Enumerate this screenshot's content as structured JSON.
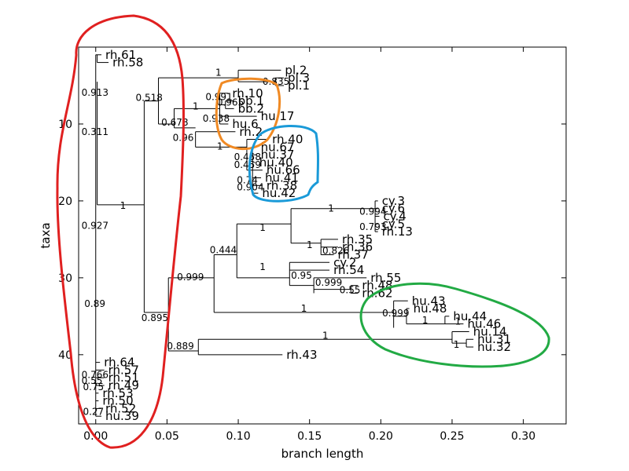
{
  "chart_data": {
    "type": "dendrogram",
    "title": "",
    "xlabel": "branch length",
    "ylabel": "taxa",
    "xlim": [
      -0.012,
      0.33
    ],
    "ylim": [
      49,
      0
    ],
    "xticks": [
      "0.00",
      "0.05",
      "0.10",
      "0.15",
      "0.20",
      "0.25",
      "0.30"
    ],
    "yticks": [
      "10",
      "20",
      "30",
      "40"
    ],
    "leaves": [
      {
        "label": "rh.61",
        "x": 0.004,
        "y": 1
      },
      {
        "label": "rh.58",
        "x": 0.009,
        "y": 2
      },
      {
        "label": "pl.2",
        "x": 0.13,
        "y": 3
      },
      {
        "label": "pl.3",
        "x": 0.132,
        "y": 4
      },
      {
        "label": "pl.1",
        "x": 0.132,
        "y": 5
      },
      {
        "label": "rh.10",
        "x": 0.093,
        "y": 6
      },
      {
        "label": "bb.1",
        "x": 0.097,
        "y": 7
      },
      {
        "label": "bb.2",
        "x": 0.097,
        "y": 8
      },
      {
        "label": "hu.17",
        "x": 0.113,
        "y": 9
      },
      {
        "label": "hu.6",
        "x": 0.093,
        "y": 10
      },
      {
        "label": "rh.2",
        "x": 0.098,
        "y": 11
      },
      {
        "label": "rh.40",
        "x": 0.121,
        "y": 12
      },
      {
        "label": "hu.67",
        "x": 0.113,
        "y": 13
      },
      {
        "label": "hu.37",
        "x": 0.113,
        "y": 14
      },
      {
        "label": "hu.40",
        "x": 0.112,
        "y": 15
      },
      {
        "label": "hu.66",
        "x": 0.117,
        "y": 16
      },
      {
        "label": "hu.41",
        "x": 0.116,
        "y": 17
      },
      {
        "label": "rh.38",
        "x": 0.117,
        "y": 18
      },
      {
        "label": "hu.42",
        "x": 0.114,
        "y": 19
      },
      {
        "label": "cy.3",
        "x": 0.198,
        "y": 20
      },
      {
        "label": "cy.6",
        "x": 0.198,
        "y": 21
      },
      {
        "label": "cy.4",
        "x": 0.199,
        "y": 22
      },
      {
        "label": "cy.5",
        "x": 0.198,
        "y": 23
      },
      {
        "label": "rh.13",
        "x": 0.198,
        "y": 24
      },
      {
        "label": "rh.35",
        "x": 0.17,
        "y": 25
      },
      {
        "label": "rh.36",
        "x": 0.17,
        "y": 26
      },
      {
        "label": "rh.37",
        "x": 0.167,
        "y": 27
      },
      {
        "label": "cy.2",
        "x": 0.164,
        "y": 28
      },
      {
        "label": "rh.54",
        "x": 0.164,
        "y": 29
      },
      {
        "label": "rh.55",
        "x": 0.19,
        "y": 30
      },
      {
        "label": "rh.48",
        "x": 0.184,
        "y": 31
      },
      {
        "label": "rh.62",
        "x": 0.184,
        "y": 32
      },
      {
        "label": "hu.43",
        "x": 0.219,
        "y": 33
      },
      {
        "label": "hu.48",
        "x": 0.22,
        "y": 34
      },
      {
        "label": "hu.44",
        "x": 0.248,
        "y": 35
      },
      {
        "label": "hu.46",
        "x": 0.258,
        "y": 36
      },
      {
        "label": "hu.14",
        "x": 0.262,
        "y": 37
      },
      {
        "label": "hu.31",
        "x": 0.265,
        "y": 38
      },
      {
        "label": "hu.32",
        "x": 0.265,
        "y": 39
      },
      {
        "label": "rh.43",
        "x": 0.131,
        "y": 40
      },
      {
        "label": "rh.64",
        "x": 0.003,
        "y": 41
      },
      {
        "label": "rh.57",
        "x": 0.006,
        "y": 42
      },
      {
        "label": "rh.51",
        "x": 0.006,
        "y": 43
      },
      {
        "label": "rh.49",
        "x": 0.006,
        "y": 44
      },
      {
        "label": "rh.53",
        "x": 0.002,
        "y": 45
      },
      {
        "label": "rh.50",
        "x": 0.002,
        "y": 46
      },
      {
        "label": "rh.52",
        "x": 0.004,
        "y": 47
      },
      {
        "label": "hu.39",
        "x": 0.004,
        "y": 48
      }
    ],
    "branches": [
      [
        0.0,
        1.0,
        0.004,
        1.0
      ],
      [
        0.0,
        1.0,
        0.0,
        48.0
      ],
      [
        0.0,
        1.5,
        0.0,
        1.5
      ],
      [
        0.001,
        1.0,
        0.001,
        2.0
      ],
      [
        0.001,
        2.0,
        0.009,
        2.0
      ],
      [
        0.001,
        4.5,
        0.001,
        20.5
      ],
      [
        0.001,
        20.5,
        0.034,
        20.5
      ],
      [
        0.034,
        7.0,
        0.034,
        34.5
      ],
      [
        0.034,
        7.0,
        0.044,
        7.0
      ],
      [
        0.044,
        4.0,
        0.044,
        10.0
      ],
      [
        0.044,
        4.0,
        0.1,
        4.0
      ],
      [
        0.1,
        3.0,
        0.1,
        4.5
      ],
      [
        0.1,
        3.0,
        0.13,
        3.0
      ],
      [
        0.126,
        4.0,
        0.126,
        5.0
      ],
      [
        0.126,
        4.0,
        0.132,
        4.0
      ],
      [
        0.126,
        5.0,
        0.132,
        5.0
      ],
      [
        0.1,
        4.5,
        0.126,
        4.5
      ],
      [
        0.044,
        10.0,
        0.055,
        10.0
      ],
      [
        0.055,
        8.0,
        0.055,
        10.5
      ],
      [
        0.055,
        8.0,
        0.087,
        8.0
      ],
      [
        0.087,
        6.0,
        0.087,
        10.0
      ],
      [
        0.087,
        6.0,
        0.093,
        6.0
      ],
      [
        0.087,
        7.5,
        0.091,
        7.5
      ],
      [
        0.091,
        7.0,
        0.091,
        8.0
      ],
      [
        0.091,
        7.0,
        0.097,
        7.0
      ],
      [
        0.091,
        8.0,
        0.097,
        8.0
      ],
      [
        0.087,
        9.0,
        0.113,
        9.0
      ],
      [
        0.087,
        10.0,
        0.093,
        10.0
      ],
      [
        0.055,
        10.5,
        0.07,
        10.5
      ],
      [
        0.07,
        11.0,
        0.07,
        13.0
      ],
      [
        0.07,
        11.0,
        0.098,
        11.0
      ],
      [
        0.07,
        13.0,
        0.106,
        13.0
      ],
      [
        0.106,
        12.0,
        0.106,
        16.0
      ],
      [
        0.106,
        12.0,
        0.121,
        12.0
      ],
      [
        0.106,
        16.0,
        0.11,
        16.0
      ],
      [
        0.11,
        13.0,
        0.11,
        19.0
      ],
      [
        0.11,
        13.0,
        0.113,
        13.0
      ],
      [
        0.11,
        14.0,
        0.113,
        14.0
      ],
      [
        0.11,
        15.0,
        0.112,
        15.0
      ],
      [
        0.11,
        16.0,
        0.117,
        16.0
      ],
      [
        0.11,
        17.0,
        0.116,
        17.0
      ],
      [
        0.11,
        18.0,
        0.117,
        18.0
      ],
      [
        0.11,
        19.0,
        0.114,
        19.0
      ],
      [
        0.034,
        34.5,
        0.051,
        34.5
      ],
      [
        0.051,
        30.0,
        0.051,
        39.5
      ],
      [
        0.051,
        30.0,
        0.083,
        30.0
      ],
      [
        0.083,
        27.0,
        0.083,
        34.5
      ],
      [
        0.083,
        27.0,
        0.099,
        27.0
      ],
      [
        0.099,
        23.0,
        0.099,
        30.0
      ],
      [
        0.099,
        23.0,
        0.137,
        23.0
      ],
      [
        0.137,
        21.0,
        0.137,
        25.5
      ],
      [
        0.137,
        21.0,
        0.196,
        21.0
      ],
      [
        0.196,
        20.0,
        0.196,
        24.0
      ],
      [
        0.196,
        20.0,
        0.198,
        20.0
      ],
      [
        0.196,
        21.0,
        0.198,
        21.0
      ],
      [
        0.196,
        22.0,
        0.199,
        22.0
      ],
      [
        0.196,
        23.0,
        0.198,
        23.0
      ],
      [
        0.196,
        24.0,
        0.198,
        24.0
      ],
      [
        0.137,
        25.5,
        0.158,
        25.5
      ],
      [
        0.158,
        25.0,
        0.158,
        27.0
      ],
      [
        0.158,
        25.0,
        0.17,
        25.0
      ],
      [
        0.158,
        26.0,
        0.17,
        26.0
      ],
      [
        0.158,
        27.0,
        0.167,
        27.0
      ],
      [
        0.099,
        30.0,
        0.136,
        30.0
      ],
      [
        0.136,
        28.0,
        0.136,
        31.0
      ],
      [
        0.136,
        28.0,
        0.164,
        28.0
      ],
      [
        0.136,
        29.0,
        0.164,
        29.0
      ],
      [
        0.136,
        31.0,
        0.153,
        31.0
      ],
      [
        0.153,
        30.0,
        0.153,
        32.0
      ],
      [
        0.153,
        30.0,
        0.19,
        30.0
      ],
      [
        0.153,
        31.5,
        0.179,
        31.5
      ],
      [
        0.179,
        31.0,
        0.179,
        32.0
      ],
      [
        0.179,
        31.0,
        0.184,
        31.0
      ],
      [
        0.179,
        32.0,
        0.184,
        32.0
      ],
      [
        0.083,
        34.5,
        0.209,
        34.5
      ],
      [
        0.209,
        33.0,
        0.209,
        36.5
      ],
      [
        0.209,
        33.0,
        0.219,
        33.0
      ],
      [
        0.209,
        35.0,
        0.218,
        35.0
      ],
      [
        0.218,
        34.0,
        0.218,
        36.0
      ],
      [
        0.218,
        34.0,
        0.22,
        34.0
      ],
      [
        0.218,
        36.0,
        0.245,
        36.0
      ],
      [
        0.245,
        35.0,
        0.245,
        36.0
      ],
      [
        0.245,
        35.0,
        0.248,
        35.0
      ],
      [
        0.245,
        36.0,
        0.258,
        36.0
      ],
      [
        0.051,
        39.5,
        0.072,
        39.5
      ],
      [
        0.072,
        38.0,
        0.072,
        40.0
      ],
      [
        0.072,
        38.0,
        0.25,
        38.0
      ],
      [
        0.072,
        40.0,
        0.131,
        40.0
      ],
      [
        0.25,
        37.0,
        0.25,
        38.5
      ],
      [
        0.25,
        37.0,
        0.262,
        37.0
      ],
      [
        0.25,
        38.5,
        0.26,
        38.5
      ],
      [
        0.26,
        38.0,
        0.26,
        39.0
      ],
      [
        0.26,
        38.0,
        0.265,
        38.0
      ],
      [
        0.26,
        39.0,
        0.265,
        39.0
      ],
      [
        0.0,
        41.0,
        0.003,
        41.0
      ],
      [
        0.0,
        42.0,
        0.006,
        42.0
      ],
      [
        0.0,
        43.0,
        0.006,
        43.0
      ],
      [
        0.0,
        44.0,
        0.006,
        44.0
      ],
      [
        0.0,
        45.0,
        0.002,
        45.0
      ],
      [
        0.0,
        46.0,
        0.002,
        46.0
      ],
      [
        0.0,
        47.0,
        0.004,
        47.0
      ],
      [
        0.0,
        48.0,
        0.004,
        48.0
      ]
    ],
    "support_values": [
      {
        "label": "0.913",
        "x": -0.01,
        "y": 5.9
      },
      {
        "label": "0.311",
        "x": -0.01,
        "y": 11.0
      },
      {
        "label": "0.927",
        "x": -0.01,
        "y": 23.2
      },
      {
        "label": "0.89",
        "x": -0.008,
        "y": 33.4
      },
      {
        "label": "0.518",
        "x": 0.028,
        "y": 6.6
      },
      {
        "label": "1",
        "x": 0.084,
        "y": 3.3
      },
      {
        "label": "0.835",
        "x": 0.117,
        "y": 4.5
      },
      {
        "label": "0.678",
        "x": 0.046,
        "y": 9.8
      },
      {
        "label": "1",
        "x": 0.068,
        "y": 7.7
      },
      {
        "label": "0.991",
        "x": 0.077,
        "y": 6.5
      },
      {
        "label": "0.965",
        "x": 0.085,
        "y": 7.2
      },
      {
        "label": "0.938",
        "x": 0.075,
        "y": 9.3
      },
      {
        "label": "0.96",
        "x": 0.054,
        "y": 11.8
      },
      {
        "label": "1",
        "x": 0.085,
        "y": 12.9
      },
      {
        "label": "0.458",
        "x": 0.097,
        "y": 14.3
      },
      {
        "label": "0.459",
        "x": 0.097,
        "y": 15.3
      },
      {
        "label": "0.74",
        "x": 0.099,
        "y": 17.3
      },
      {
        "label": "0.904",
        "x": 0.099,
        "y": 18.2
      },
      {
        "label": "1",
        "x": 0.017,
        "y": 20.6
      },
      {
        "label": "0.895",
        "x": 0.032,
        "y": 35.2
      },
      {
        "label": "0.999",
        "x": 0.057,
        "y": 29.9
      },
      {
        "label": "0.444",
        "x": 0.08,
        "y": 26.4
      },
      {
        "label": "1",
        "x": 0.115,
        "y": 23.5
      },
      {
        "label": "1",
        "x": 0.163,
        "y": 21.0
      },
      {
        "label": "0.994",
        "x": 0.185,
        "y": 21.4
      },
      {
        "label": "0.793",
        "x": 0.185,
        "y": 23.4
      },
      {
        "label": "1",
        "x": 0.148,
        "y": 25.7
      },
      {
        "label": "0.826",
        "x": 0.159,
        "y": 26.5
      },
      {
        "label": "1",
        "x": 0.115,
        "y": 28.6
      },
      {
        "label": "0.95",
        "x": 0.137,
        "y": 29.7
      },
      {
        "label": "0.999",
        "x": 0.154,
        "y": 30.6
      },
      {
        "label": "0.55",
        "x": 0.171,
        "y": 31.6
      },
      {
        "label": "1",
        "x": 0.144,
        "y": 34.0
      },
      {
        "label": "0.999",
        "x": 0.201,
        "y": 34.6
      },
      {
        "label": "1",
        "x": 0.229,
        "y": 35.5
      },
      {
        "label": "1",
        "x": 0.252,
        "y": 35.7
      },
      {
        "label": "1",
        "x": 0.159,
        "y": 37.5
      },
      {
        "label": "1",
        "x": 0.251,
        "y": 38.7
      },
      {
        "label": "0.889",
        "x": 0.05,
        "y": 38.9
      },
      {
        "label": "0.766",
        "x": -0.01,
        "y": 42.6
      },
      {
        "label": "0.55",
        "x": -0.01,
        "y": 43.4
      },
      {
        "label": "0.75",
        "x": -0.009,
        "y": 44.2
      },
      {
        "label": "0.27",
        "x": -0.009,
        "y": 47.4
      }
    ],
    "annotation_colors": {
      "red": "#e02020",
      "orange": "#f08a24",
      "blue": "#1a9ad8",
      "green": "#22aa44"
    },
    "grid": false
  }
}
